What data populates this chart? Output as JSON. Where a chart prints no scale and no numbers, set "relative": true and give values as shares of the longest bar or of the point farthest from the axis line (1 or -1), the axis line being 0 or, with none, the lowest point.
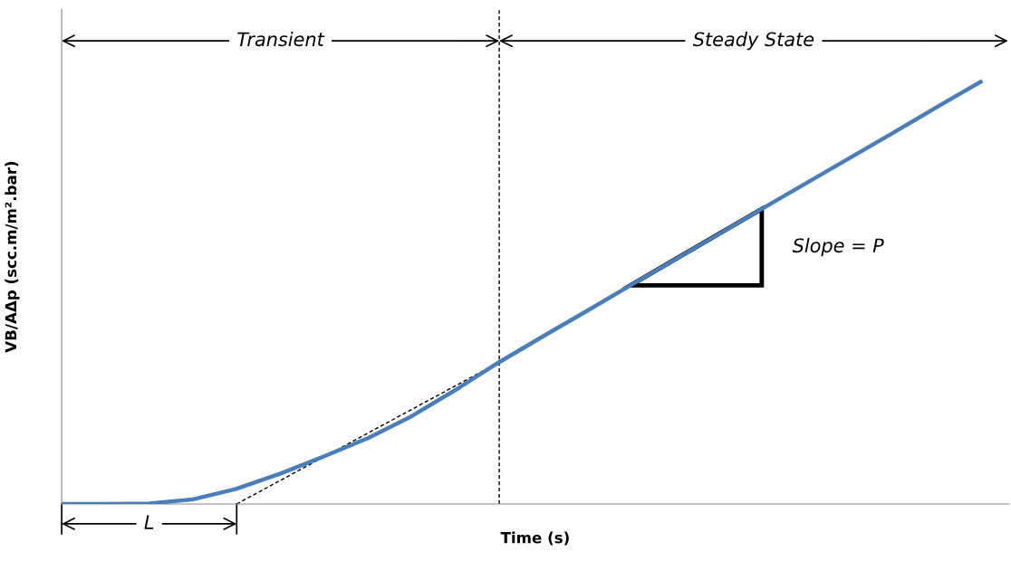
{
  "chart_data": {
    "type": "line",
    "relative": true,
    "xlabel": "Time (s)",
    "ylabel": "VB/AΔp (scc.m/m².bar)",
    "categories": [
      null,
      null,
      null,
      null,
      null,
      null,
      null,
      null,
      null,
      null,
      null,
      null,
      null,
      null,
      null,
      null,
      null,
      null,
      null,
      null,
      null,
      null
    ],
    "tick_labels": false,
    "legend": false,
    "marker": "none",
    "series": [
      {
        "color": "#4a7ebb",
        "line_style": "solid",
        "values": [
          0,
          0,
          0.001,
          0.011,
          0.036,
          0.072,
          0.113,
          0.156,
          0.208,
          0.27,
          0.336,
          0.397,
          0.457,
          0.518,
          0.578,
          0.638,
          0.699,
          0.759,
          0.819,
          0.879,
          0.94,
          1
        ]
      },
      {
        "color": "#000000",
        "line_style": "dashed",
        "values": [
          null,
          null,
          null,
          null,
          0,
          0.056,
          0.112,
          0.168,
          0.224,
          0.28,
          0.336,
          null,
          null,
          null,
          null,
          null,
          null,
          null,
          null,
          null,
          null,
          null
        ]
      }
    ],
    "annotations": [
      "Transient",
      "Steady State",
      "L",
      "Slope = P"
    ]
  }
}
